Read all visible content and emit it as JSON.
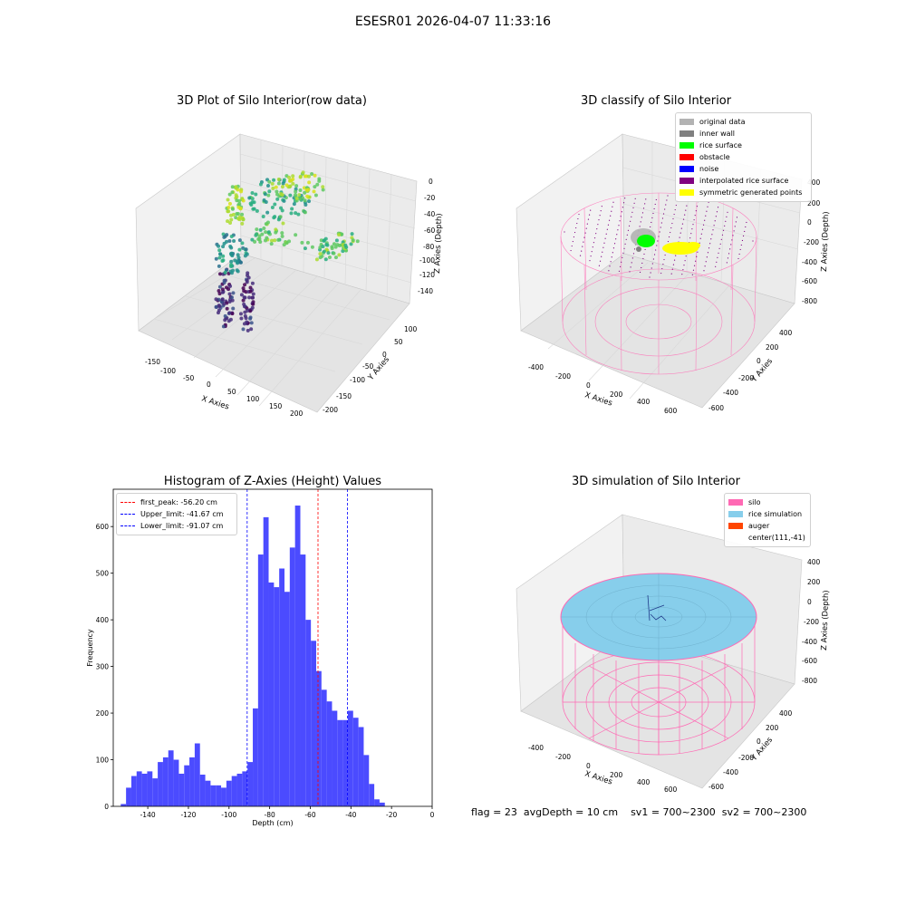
{
  "figure": {
    "suptitle": "ESESR01 2026-04-07 11:33:16",
    "status": {
      "flag": "flag = 23",
      "avg_depth": "avgDepth = 10 cm",
      "sv1": "sv1 = 700~2300",
      "sv2": "sv2 = 700~2300"
    }
  },
  "chart_data": [
    {
      "type": "scatter",
      "title": "3D Plot of Silo Interior(row data)",
      "xlabel": "X Axies",
      "ylabel": "Y Axies",
      "zlabel": "Z Axies (Depth)",
      "xlim": [
        -160,
        210
      ],
      "ylim": [
        -210,
        110
      ],
      "zlim": [
        -150,
        0
      ],
      "x_ticks": [
        "-150",
        "-100",
        "-50",
        "0",
        "50",
        "100",
        "150",
        "200"
      ],
      "y_ticks": [
        "100",
        "50",
        "0",
        "-50",
        "-100",
        "-150",
        "-200"
      ],
      "z_ticks": [
        "0",
        "-20",
        "-40",
        "-60",
        "-80",
        "-100",
        "-120",
        "-140"
      ],
      "colormap": "viridis"
    },
    {
      "type": "scatter",
      "title": "3D classify of Silo Interior",
      "xlabel": "X Axies",
      "ylabel": "Y Axies",
      "zlabel": "Z Axies (Depth)",
      "x_ticks": [
        "-400",
        "-200",
        "0",
        "200",
        "400",
        "600"
      ],
      "y_ticks": [
        "400",
        "200",
        "0",
        "-200",
        "-400",
        "-600"
      ],
      "z_ticks": [
        "400",
        "200",
        "0",
        "-200",
        "-400",
        "-600",
        "-800"
      ],
      "legend": [
        {
          "label": "original data",
          "color": "#b3b3b3"
        },
        {
          "label": "inner wall",
          "color": "#808080"
        },
        {
          "label": "rice surface",
          "color": "#00ff00"
        },
        {
          "label": "obstacle",
          "color": "#ff0000"
        },
        {
          "label": "noise",
          "color": "#0000ff"
        },
        {
          "label": "interpolated rice surface",
          "color": "#800080"
        },
        {
          "label": "symmetric generated points",
          "color": "#ffff00"
        }
      ]
    },
    {
      "type": "bar",
      "title": "Histogram of Z-Axies (Height) Values",
      "xlabel": "Depth (cm)",
      "ylabel": "Frequency",
      "xlim": [
        -157,
        0
      ],
      "ylim": [
        0,
        680
      ],
      "x_ticks": [
        -140,
        -120,
        -100,
        -80,
        -60,
        -40,
        -20,
        0
      ],
      "y_ticks": [
        0,
        100,
        200,
        300,
        400,
        500,
        600
      ],
      "bar_color": "#4b4bff",
      "bins_start": -153.3,
      "bin_width": 2.6,
      "values": [
        5,
        40,
        65,
        75,
        70,
        75,
        60,
        95,
        105,
        120,
        100,
        70,
        88,
        105,
        135,
        68,
        55,
        45,
        45,
        40,
        55,
        65,
        70,
        75,
        95,
        210,
        540,
        620,
        480,
        470,
        510,
        460,
        555,
        645,
        540,
        400,
        355,
        290,
        250,
        225,
        205,
        185,
        185,
        205,
        190,
        170,
        110,
        48,
        15,
        8
      ],
      "reference_lines": [
        {
          "label": "first_peak: -56.20 cm",
          "value": -56.2,
          "color": "#ff0000"
        },
        {
          "label": "Upper_limit: -41.67 cm",
          "value": -41.67,
          "color": "#0000ff"
        },
        {
          "label": "Lower_limit: -91.07 cm",
          "value": -91.07,
          "color": "#0000ff"
        }
      ]
    },
    {
      "type": "scatter",
      "title": "3D simulation of Silo Interior",
      "xlabel": "X Axies",
      "ylabel": "Y Axies",
      "zlabel": "Z Axies (Depth)",
      "x_ticks": [
        "-400",
        "-200",
        "0",
        "200",
        "400",
        "600"
      ],
      "y_ticks": [
        "400",
        "200",
        "0",
        "-200",
        "-400",
        "-600"
      ],
      "z_ticks": [
        "400",
        "200",
        "0",
        "-200",
        "-400",
        "-600",
        "-800"
      ],
      "legend": [
        {
          "label": "silo",
          "color": "#ff69b4"
        },
        {
          "label": "rice simulation",
          "color": "#87ceeb"
        },
        {
          "label": "auger",
          "color": "#ff4500"
        },
        {
          "label": "center(111,-41)",
          "color": ""
        }
      ]
    }
  ]
}
